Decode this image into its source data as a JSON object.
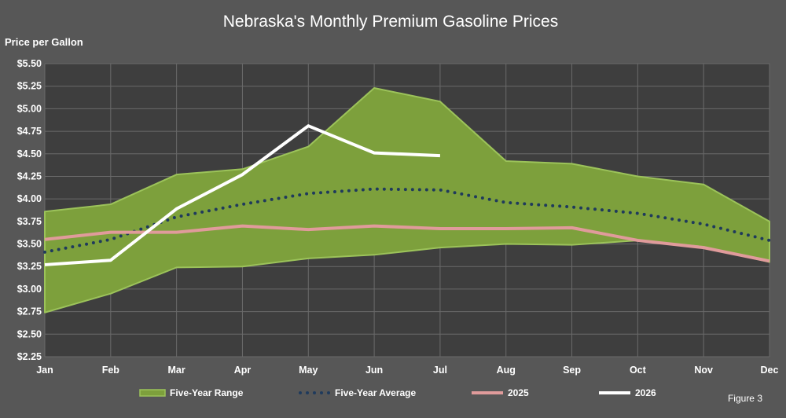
{
  "chart_data": {
    "type": "area",
    "title": "Nebraska's Monthly Premium Gasoline Prices",
    "ylabel": "Price per Gallon",
    "xlabel": "",
    "categories": [
      "Jan",
      "Feb",
      "Mar",
      "Apr",
      "May",
      "Jun",
      "Jul",
      "Aug",
      "Sep",
      "Oct",
      "Nov",
      "Dec"
    ],
    "ylim": [
      2.25,
      5.5
    ],
    "yticks": [
      "$2.25",
      "$2.50",
      "$2.75",
      "$3.00",
      "$3.25",
      "$3.50",
      "$3.75",
      "$4.00",
      "$4.25",
      "$4.50",
      "$4.75",
      "$5.00",
      "$5.25",
      "$5.50"
    ],
    "grid": true,
    "legend_position": "bottom",
    "series": [
      {
        "name": "Five-Year Range",
        "kind": "range",
        "low": [
          2.74,
          2.95,
          3.24,
          3.25,
          3.34,
          3.38,
          3.46,
          3.5,
          3.49,
          3.54,
          3.47,
          3.3
        ],
        "high": [
          3.86,
          3.94,
          4.27,
          4.33,
          4.58,
          5.23,
          5.08,
          4.42,
          4.39,
          4.25,
          4.16,
          3.75
        ],
        "color": "#7da03c"
      },
      {
        "name": "Five-Year Average",
        "kind": "dotted",
        "values": [
          3.41,
          3.55,
          3.8,
          3.94,
          4.06,
          4.11,
          4.1,
          3.96,
          3.91,
          3.84,
          3.72,
          3.54
        ],
        "color": "#1f3a5c"
      },
      {
        "name": "2025",
        "kind": "line",
        "values": [
          3.55,
          3.63,
          3.63,
          3.7,
          3.66,
          3.7,
          3.67,
          3.67,
          3.68,
          3.54,
          3.46,
          3.31
        ],
        "color": "#e09b9b"
      },
      {
        "name": "2026",
        "kind": "line",
        "values": [
          3.27,
          3.32,
          3.89,
          4.27,
          4.81,
          4.51,
          4.48,
          null,
          null,
          null,
          null,
          null
        ],
        "color": "#ffffff"
      }
    ]
  },
  "figure_label": "Figure 3",
  "colors": {
    "background": "#575757",
    "plot_background": "#3e3e3e",
    "gridline": "#6a6a6a",
    "text": "#ffffff"
  }
}
